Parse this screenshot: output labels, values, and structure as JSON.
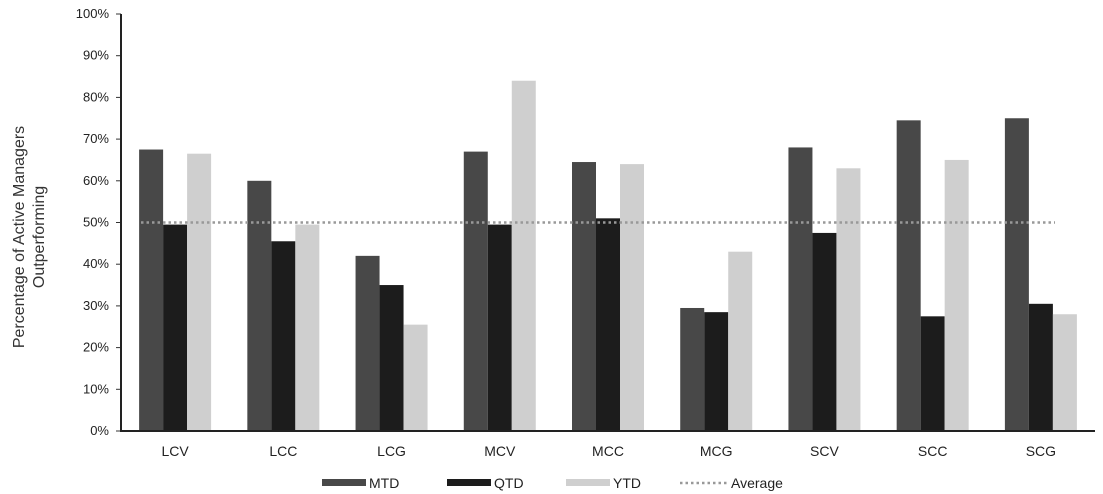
{
  "chart_data": {
    "type": "bar",
    "ylabel_line1": "Percentage of Active Managers",
    "ylabel_line2": "Outperforming",
    "ylim": [
      0,
      100
    ],
    "yticks": [
      "0%",
      "10%",
      "20%",
      "30%",
      "40%",
      "50%",
      "60%",
      "70%",
      "80%",
      "90%",
      "100%"
    ],
    "categories": [
      "LCV",
      "LCC",
      "LCG",
      "MCV",
      "MCC",
      "MCG",
      "SCV",
      "SCC",
      "SCG"
    ],
    "series": [
      {
        "name": "MTD",
        "color": "#484848",
        "values": [
          67.5,
          60,
          42,
          67,
          64.5,
          29.5,
          68,
          74.5,
          75
        ]
      },
      {
        "name": "QTD",
        "color": "#1c1c1c",
        "values": [
          49.5,
          45.5,
          35,
          49.5,
          51,
          28.5,
          47.5,
          27.5,
          30.5
        ]
      },
      {
        "name": "YTD",
        "color": "#cfcfcf",
        "values": [
          66.5,
          49.5,
          25.5,
          84,
          64,
          43,
          63,
          65,
          28
        ]
      }
    ],
    "average": {
      "name": "Average",
      "value": 50,
      "color": "#999999"
    },
    "legend_position": "bottom",
    "grid": false
  }
}
